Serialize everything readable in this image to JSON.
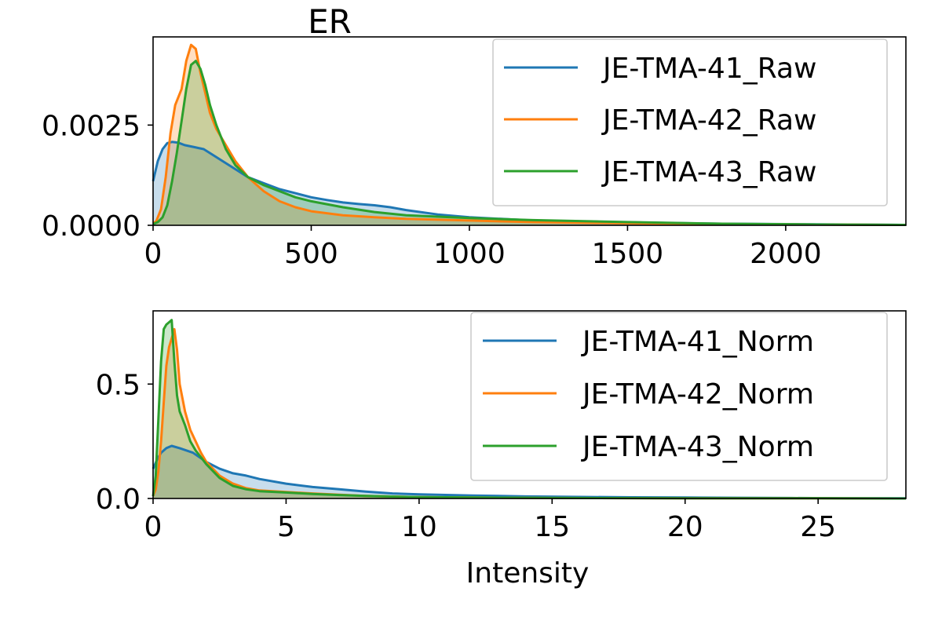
{
  "chart_data": [
    {
      "type": "area",
      "title": "ER",
      "xlabel": "",
      "ylabel": "",
      "xlim": [
        0,
        2380
      ],
      "ylim": [
        0,
        0.0047
      ],
      "xticks": [
        0,
        500,
        1000,
        1500,
        2000
      ],
      "xtick_labels": [
        "0",
        "500",
        "1000",
        "1500",
        "2000"
      ],
      "yticks": [
        0,
        0.0025
      ],
      "ytick_labels": [
        "0.0000",
        "0.0025"
      ],
      "grid": false,
      "legend": "top-right",
      "series": [
        {
          "name": "JE-TMA-41_Raw",
          "color": "#1f77b4",
          "x": [
            0,
            15,
            30,
            45,
            60,
            80,
            100,
            130,
            160,
            190,
            220,
            260,
            300,
            350,
            400,
            450,
            500,
            550,
            600,
            650,
            700,
            750,
            800,
            900,
            1000,
            1100,
            1200,
            1400,
            1600,
            1800,
            2000,
            2200,
            2380
          ],
          "y": [
            0.0011,
            0.0016,
            0.0019,
            0.00205,
            0.00208,
            0.00206,
            0.002,
            0.00195,
            0.0019,
            0.00175,
            0.0016,
            0.0014,
            0.0012,
            0.00105,
            0.0009,
            0.0008,
            0.0007,
            0.00063,
            0.00057,
            0.00053,
            0.0005,
            0.00045,
            0.00038,
            0.00027,
            0.0002,
            0.00016,
            0.00012,
            9e-05,
            6e-05,
            4e-05,
            3e-05,
            2e-05,
            1e-05
          ]
        },
        {
          "name": "JE-TMA-42_Raw",
          "color": "#ff7f0e",
          "x": [
            0,
            10,
            25,
            40,
            55,
            70,
            90,
            105,
            120,
            135,
            150,
            165,
            180,
            200,
            230,
            260,
            300,
            350,
            400,
            450,
            500,
            600,
            700,
            800,
            1000,
            1200,
            1500,
            1800,
            2100,
            2380
          ],
          "y": [
            5e-05,
            0.0001,
            0.0004,
            0.0012,
            0.0023,
            0.003,
            0.0034,
            0.0041,
            0.0045,
            0.0044,
            0.0038,
            0.0033,
            0.0028,
            0.0024,
            0.002,
            0.0016,
            0.0012,
            0.00085,
            0.0006,
            0.00045,
            0.00035,
            0.00025,
            0.0002,
            0.00016,
            0.00012,
            8e-05,
            5e-05,
            3e-05,
            2e-05,
            1e-05
          ]
        },
        {
          "name": "JE-TMA-43_Raw",
          "color": "#2ca02c",
          "x": [
            0,
            15,
            30,
            45,
            60,
            75,
            90,
            105,
            120,
            135,
            150,
            165,
            180,
            200,
            230,
            260,
            300,
            350,
            400,
            450,
            500,
            600,
            700,
            800,
            1000,
            1200,
            1500,
            1800,
            2100,
            2380
          ],
          "y": [
            3e-05,
            8e-05,
            0.0002,
            0.0005,
            0.0011,
            0.0018,
            0.0026,
            0.0034,
            0.004,
            0.0041,
            0.0039,
            0.0035,
            0.003,
            0.0025,
            0.0019,
            0.0015,
            0.0012,
            0.001,
            0.00085,
            0.0007,
            0.0006,
            0.00045,
            0.00033,
            0.00025,
            0.00018,
            0.00013,
            8e-05,
            4e-05,
            2e-05,
            1e-05
          ]
        }
      ]
    },
    {
      "type": "area",
      "title": "",
      "xlabel": "Intensity",
      "ylabel": "",
      "xlim": [
        0,
        28.3
      ],
      "ylim": [
        0,
        0.82
      ],
      "xticks": [
        0,
        5,
        10,
        15,
        20,
        25
      ],
      "xtick_labels": [
        "0",
        "5",
        "10",
        "15",
        "20",
        "25"
      ],
      "yticks": [
        0,
        0.5
      ],
      "ytick_labels": [
        "0.0",
        "0.5"
      ],
      "grid": false,
      "legend": "top-right",
      "series": [
        {
          "name": "JE-TMA-41_Norm",
          "color": "#1f77b4",
          "x": [
            0,
            0.15,
            0.3,
            0.5,
            0.7,
            1.0,
            1.5,
            2.0,
            2.5,
            3.0,
            3.5,
            4.0,
            5.0,
            6.0,
            7.0,
            8.0,
            9.0,
            10,
            12,
            14,
            16,
            18,
            20,
            22,
            24,
            26,
            28.3
          ],
          "y": [
            0.13,
            0.17,
            0.2,
            0.22,
            0.23,
            0.22,
            0.2,
            0.16,
            0.13,
            0.11,
            0.1,
            0.085,
            0.065,
            0.05,
            0.04,
            0.03,
            0.022,
            0.018,
            0.013,
            0.009,
            0.007,
            0.005,
            0.004,
            0.003,
            0.002,
            0.001,
            0.001
          ]
        },
        {
          "name": "JE-TMA-42_Norm",
          "color": "#ff7f0e",
          "x": [
            0,
            0.1,
            0.2,
            0.3,
            0.4,
            0.5,
            0.6,
            0.7,
            0.8,
            0.9,
            1.0,
            1.2,
            1.4,
            1.6,
            1.8,
            2.0,
            2.5,
            3.0,
            3.5,
            4.0,
            5.0,
            6.0,
            7.0,
            8.0,
            10,
            12,
            15,
            20,
            25,
            28.3
          ],
          "y": [
            0.01,
            0.04,
            0.12,
            0.25,
            0.42,
            0.58,
            0.66,
            0.7,
            0.74,
            0.65,
            0.5,
            0.38,
            0.3,
            0.25,
            0.2,
            0.16,
            0.1,
            0.065,
            0.045,
            0.035,
            0.028,
            0.022,
            0.016,
            0.011,
            0.006,
            0.004,
            0.002,
            0.001,
            0.001,
            0.0
          ]
        },
        {
          "name": "JE-TMA-43_Norm",
          "color": "#2ca02c",
          "x": [
            0,
            0.1,
            0.2,
            0.3,
            0.4,
            0.5,
            0.6,
            0.7,
            0.8,
            0.9,
            1.0,
            1.2,
            1.4,
            1.6,
            1.8,
            2.0,
            2.5,
            3.0,
            3.5,
            4.0,
            5.0,
            6.0,
            7.0,
            8.0,
            10,
            12,
            15,
            20,
            25,
            28.3
          ],
          "y": [
            0.01,
            0.1,
            0.35,
            0.6,
            0.74,
            0.76,
            0.77,
            0.78,
            0.6,
            0.45,
            0.38,
            0.32,
            0.25,
            0.21,
            0.18,
            0.15,
            0.09,
            0.055,
            0.04,
            0.032,
            0.026,
            0.02,
            0.015,
            0.011,
            0.006,
            0.004,
            0.002,
            0.001,
            0.001,
            0.0
          ]
        }
      ]
    }
  ]
}
